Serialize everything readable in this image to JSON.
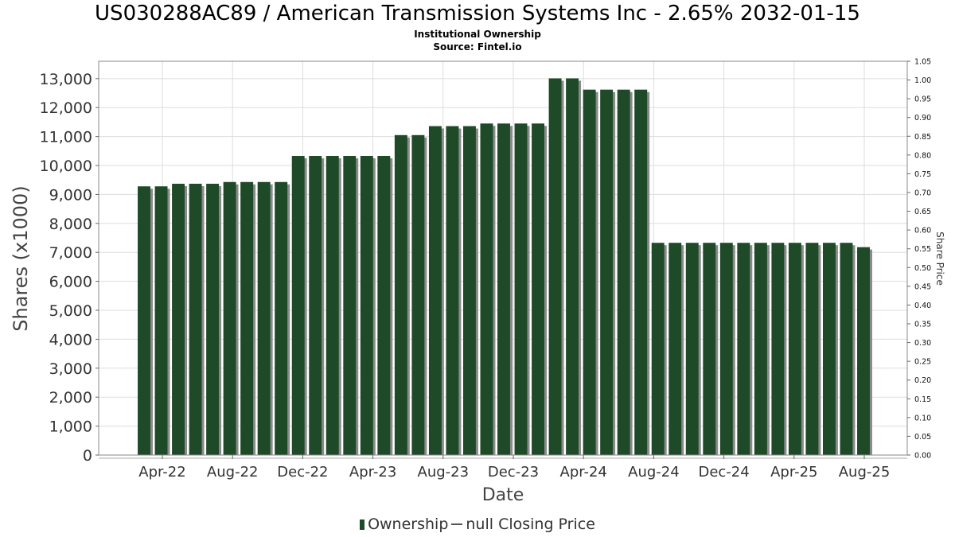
{
  "header": {
    "title": "US030288AC89 / American Transmission Systems Inc - 2.65% 2032-01-15",
    "subtitle": "Institutional Ownership",
    "source": "Source: Fintel.io"
  },
  "legend": {
    "ownership": "Ownership",
    "closing_price": "null Closing Price"
  },
  "chart_data": {
    "type": "bar",
    "xlabel": "Date",
    "ylabel": "Shares (x1000)",
    "y2label": "Share Price",
    "ylim": [
      0,
      13600
    ],
    "y2lim": [
      0,
      1.05
    ],
    "yticks": [
      0,
      1000,
      2000,
      3000,
      4000,
      5000,
      6000,
      7000,
      8000,
      9000,
      10000,
      11000,
      12000,
      13000
    ],
    "ytick_labels": [
      "0",
      "1,000",
      "2,000",
      "3,000",
      "4,000",
      "5,000",
      "6,000",
      "7,000",
      "8,000",
      "9,000",
      "10,000",
      "11,000",
      "12,000",
      "13,000"
    ],
    "y2ticks": [
      0,
      0.05,
      0.1,
      0.15,
      0.2,
      0.25,
      0.3,
      0.35,
      0.4,
      0.45,
      0.5,
      0.55,
      0.6,
      0.65,
      0.7,
      0.75,
      0.8,
      0.85,
      0.9,
      0.95,
      1.0,
      1.05
    ],
    "y2tick_labels": [
      "0.00",
      "0.05",
      "0.10",
      "0.15",
      "0.20",
      "0.25",
      "0.30",
      "0.35",
      "0.40",
      "0.45",
      "0.50",
      "0.55",
      "0.60",
      "0.65",
      "0.70",
      "0.75",
      "0.80",
      "0.85",
      "0.90",
      "0.95",
      "1.00",
      "1.05"
    ],
    "xtick_labels": [
      "Apr-22",
      "Aug-22",
      "Dec-22",
      "Apr-23",
      "Aug-23",
      "Dec-23",
      "Apr-24",
      "Aug-24",
      "Dec-24",
      "Apr-25",
      "Aug-25"
    ],
    "grid": true,
    "legend_position": "bottom",
    "series": [
      {
        "name": "Ownership",
        "color": "#1e4a28",
        "values": [
          9280,
          9280,
          9370,
          9370,
          9370,
          9430,
          9430,
          9430,
          9430,
          10330,
          10330,
          10330,
          10330,
          10330,
          10330,
          11050,
          11050,
          11360,
          11360,
          11360,
          11450,
          11450,
          11450,
          11450,
          13010,
          13010,
          12620,
          12620,
          12620,
          12620,
          7330,
          7330,
          7330,
          7330,
          7330,
          7330,
          7330,
          7330,
          7330,
          7330,
          7330,
          7330,
          7180
        ]
      }
    ]
  }
}
